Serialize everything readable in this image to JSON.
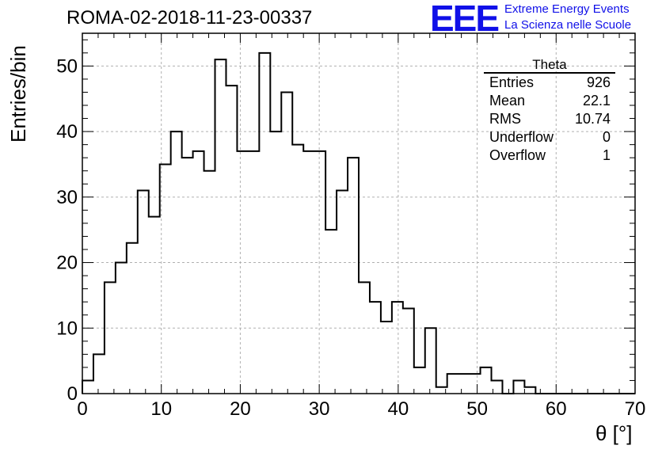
{
  "header": {
    "title": "ROMA-02-2018-11-23-00337",
    "logo_mark": "EEE",
    "logo_line1": "Extreme Energy Events",
    "logo_line2": "La Scienza nelle Scuole",
    "logo_color": "#1010e8"
  },
  "stats": {
    "title": "Theta",
    "rows": [
      {
        "label": "Entries",
        "value": "926"
      },
      {
        "label": "Mean",
        "value": "22.1"
      },
      {
        "label": "RMS",
        "value": "10.74"
      },
      {
        "label": "Underflow",
        "value": "0"
      },
      {
        "label": "Overflow",
        "value": "1"
      }
    ]
  },
  "chart_data": {
    "type": "bar",
    "style": "step-histogram",
    "title": "ROMA-02-2018-11-23-00337",
    "xlabel": "θ [°]",
    "ylabel": "Entries/bin",
    "xlim": [
      0,
      70
    ],
    "ylim": [
      0,
      55
    ],
    "bin_width": 1.4,
    "x_ticks": [
      0,
      10,
      20,
      30,
      40,
      50,
      60,
      70
    ],
    "y_ticks": [
      0,
      10,
      20,
      30,
      40,
      50
    ],
    "grid": true,
    "values": [
      2,
      6,
      17,
      20,
      23,
      31,
      27,
      35,
      40,
      36,
      37,
      34,
      51,
      47,
      37,
      37,
      52,
      40,
      46,
      38,
      37,
      37,
      25,
      31,
      36,
      17,
      14,
      11,
      14,
      13,
      4,
      10,
      1,
      3,
      3,
      3,
      4,
      2,
      0,
      2,
      1,
      0,
      0,
      0,
      0,
      0,
      0,
      0,
      0,
      0
    ]
  }
}
